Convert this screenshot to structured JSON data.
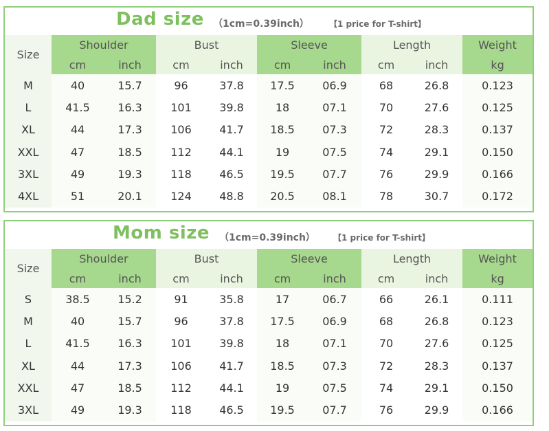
{
  "dad": {
    "title": "Dad size",
    "conversion": "（1cm=0.39inch）",
    "note": "【1 price for T-shirt】",
    "headers": {
      "size": "Size",
      "groups": [
        "Shoulder",
        "Bust",
        "Sleeve",
        "Length",
        "Weight"
      ],
      "units": [
        "cm",
        "inch",
        "cm",
        "inch",
        "cm",
        "inch",
        "cm",
        "inch",
        "kg"
      ]
    },
    "rows": [
      [
        "M",
        "40",
        "15.7",
        "96",
        "37.8",
        "17.5",
        "06.9",
        "68",
        "26.8",
        "0.123"
      ],
      [
        "L",
        "41.5",
        "16.3",
        "101",
        "39.8",
        "18",
        "07.1",
        "70",
        "27.6",
        "0.125"
      ],
      [
        "XL",
        "44",
        "17.3",
        "106",
        "41.7",
        "18.5",
        "07.3",
        "72",
        "28.3",
        "0.137"
      ],
      [
        "XXL",
        "47",
        "18.5",
        "112",
        "44.1",
        "19",
        "07.5",
        "74",
        "29.1",
        "0.150"
      ],
      [
        "3XL",
        "49",
        "19.3",
        "118",
        "46.5",
        "19.5",
        "07.7",
        "76",
        "29.9",
        "0.166"
      ],
      [
        "4XL",
        "51",
        "20.1",
        "124",
        "48.8",
        "20.5",
        "08.1",
        "78",
        "30.7",
        "0.172"
      ]
    ]
  },
  "mom": {
    "title": "Mom size",
    "conversion": "（1cm=0.39inch）",
    "note": "【1 price for T-shirt】",
    "headers": {
      "size": "Size",
      "groups": [
        "Shoulder",
        "Bust",
        "Sleeve",
        "Length",
        "Weight"
      ],
      "units": [
        "cm",
        "inch",
        "cm",
        "inch",
        "cm",
        "inch",
        "cm",
        "inch",
        "kg"
      ]
    },
    "rows": [
      [
        "S",
        "38.5",
        "15.2",
        "91",
        "35.8",
        "17",
        "06.7",
        "66",
        "26.1",
        "0.111"
      ],
      [
        "M",
        "40",
        "15.7",
        "96",
        "37.8",
        "17.5",
        "06.9",
        "68",
        "26.8",
        "0.123"
      ],
      [
        "L",
        "41.5",
        "16.3",
        "101",
        "39.8",
        "18",
        "07.1",
        "70",
        "27.6",
        "0.125"
      ],
      [
        "XL",
        "44",
        "17.3",
        "106",
        "41.7",
        "18.5",
        "07.3",
        "72",
        "28.3",
        "0.137"
      ],
      [
        "XXL",
        "47",
        "18.5",
        "112",
        "44.1",
        "19",
        "07.5",
        "74",
        "29.1",
        "0.150"
      ],
      [
        "3XL",
        "49",
        "19.3",
        "118",
        "46.5",
        "19.5",
        "07.7",
        "76",
        "29.9",
        "0.166"
      ]
    ]
  },
  "colors": {
    "border": "#8ed07a",
    "title": "#7ebf5f",
    "header_dark": "#a6d88d",
    "header_light": "#e9f5e1",
    "size_column": "#f1f7ec"
  }
}
